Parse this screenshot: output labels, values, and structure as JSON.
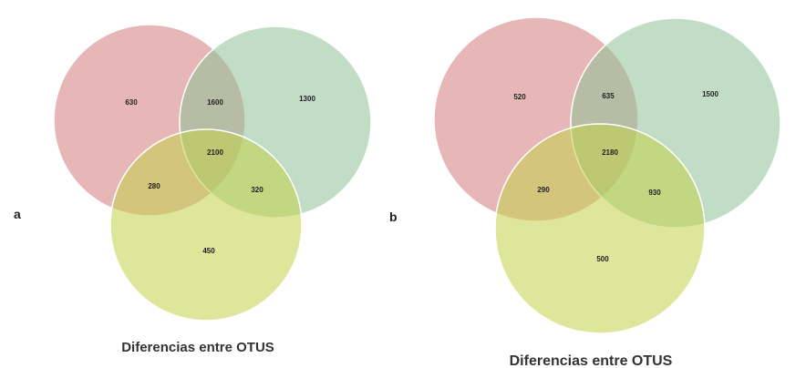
{
  "colors": {
    "set_1": "#d47b7e",
    "set_2": "#8fc196",
    "set_3": "#c2d24b",
    "opacity": 0.55
  },
  "panels": [
    {
      "letter": "a",
      "caption": "Diferencias entre OTUS",
      "regions": {
        "only_1": "630",
        "only_2": "1300",
        "only_3": "450",
        "set_1_2": "1600",
        "set_1_3": "280",
        "set_2_3": "320",
        "all_three": "2100"
      }
    },
    {
      "letter": "b",
      "caption": "Diferencias entre OTUS",
      "regions": {
        "only_1": "520",
        "only_2": "1500",
        "only_3": "500",
        "set_1_2": "635",
        "set_1_3": "290",
        "set_2_3": "930",
        "all_three": "2180"
      }
    }
  ]
}
